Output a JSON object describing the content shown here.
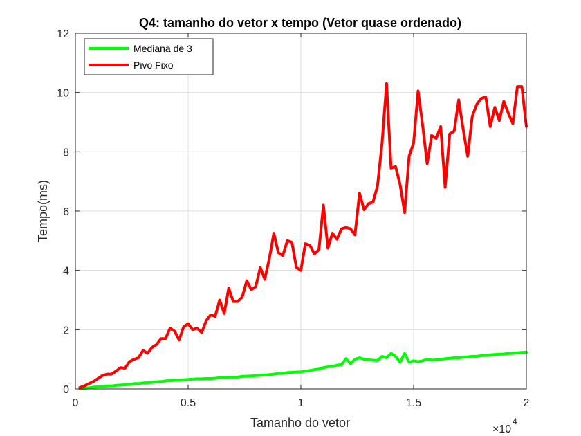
{
  "chart_data": {
    "type": "line",
    "title": "Q4: tamanho do vetor x tempo (Vetor quase ordenado)",
    "xlabel": "Tamanho do vetor",
    "ylabel": "Tempo(ms)",
    "x_exponent_times": "×10",
    "x_exponent_power": "4",
    "xlim": [
      0,
      20000
    ],
    "ylim": [
      0,
      12
    ],
    "x_ticks": [
      0,
      5000,
      10000,
      15000,
      20000
    ],
    "x_tick_labels": [
      "0",
      "0.5",
      "1",
      "1.5",
      "2"
    ],
    "y_ticks": [
      0,
      2,
      4,
      6,
      8,
      10,
      12
    ],
    "y_tick_labels": [
      "0",
      "2",
      "4",
      "6",
      "8",
      "10",
      "12"
    ],
    "grid": true,
    "legend_position": "top-left",
    "series": [
      {
        "name": "Mediana de 3",
        "color": "#00ff00",
        "x": [
          200,
          400,
          600,
          800,
          1000,
          1200,
          1400,
          1600,
          1800,
          2000,
          2200,
          2400,
          2600,
          2800,
          3000,
          3200,
          3400,
          3600,
          3800,
          4000,
          4200,
          4400,
          4600,
          4800,
          5000,
          5200,
          5400,
          5600,
          5800,
          6000,
          6200,
          6400,
          6600,
          6800,
          7000,
          7200,
          7400,
          7600,
          7800,
          8000,
          8200,
          8400,
          8600,
          8800,
          9000,
          9200,
          9400,
          9600,
          9800,
          10000,
          10200,
          10400,
          10600,
          10800,
          11000,
          11200,
          11400,
          11600,
          11800,
          12000,
          12200,
          12400,
          12600,
          12800,
          13000,
          13200,
          13400,
          13600,
          13800,
          14000,
          14200,
          14400,
          14600,
          14800,
          15000,
          15200,
          15400,
          15600,
          15800,
          16000,
          16200,
          16400,
          16600,
          16800,
          17000,
          17200,
          17400,
          17600,
          17800,
          18000,
          18200,
          18400,
          18600,
          18800,
          19000,
          19200,
          19400,
          19600,
          19800,
          20000
        ],
        "values": [
          0.0,
          0.02,
          0.04,
          0.06,
          0.07,
          0.08,
          0.1,
          0.1,
          0.12,
          0.13,
          0.14,
          0.15,
          0.18,
          0.18,
          0.2,
          0.21,
          0.22,
          0.24,
          0.25,
          0.27,
          0.28,
          0.29,
          0.3,
          0.31,
          0.32,
          0.33,
          0.34,
          0.34,
          0.35,
          0.35,
          0.36,
          0.38,
          0.38,
          0.4,
          0.4,
          0.4,
          0.42,
          0.43,
          0.44,
          0.45,
          0.46,
          0.47,
          0.48,
          0.5,
          0.52,
          0.53,
          0.55,
          0.56,
          0.57,
          0.58,
          0.6,
          0.62,
          0.65,
          0.67,
          0.72,
          0.75,
          0.76,
          0.8,
          0.82,
          1.02,
          0.85,
          1.0,
          1.05,
          1.0,
          0.98,
          0.97,
          0.96,
          1.1,
          1.05,
          1.2,
          1.1,
          0.9,
          1.2,
          0.9,
          0.95,
          0.92,
          0.95,
          1.0,
          0.97,
          0.98,
          1.0,
          1.02,
          1.03,
          1.05,
          1.05,
          1.07,
          1.08,
          1.1,
          1.1,
          1.12,
          1.13,
          1.15,
          1.16,
          1.17,
          1.18,
          1.2,
          1.2,
          1.22,
          1.23,
          1.24
        ]
      },
      {
        "name": "Pivo Fixo",
        "color": "#ff0000",
        "x": [
          200,
          400,
          600,
          800,
          1000,
          1200,
          1400,
          1600,
          1800,
          2000,
          2200,
          2400,
          2600,
          2800,
          3000,
          3200,
          3400,
          3600,
          3800,
          4000,
          4200,
          4400,
          4600,
          4800,
          5000,
          5200,
          5400,
          5600,
          5800,
          6000,
          6200,
          6400,
          6600,
          6800,
          7000,
          7200,
          7400,
          7600,
          7800,
          8000,
          8200,
          8400,
          8600,
          8800,
          9000,
          9200,
          9400,
          9600,
          9800,
          10000,
          10200,
          10400,
          10600,
          10800,
          11000,
          11200,
          11400,
          11600,
          11800,
          12000,
          12200,
          12400,
          12600,
          12800,
          13000,
          13200,
          13400,
          13600,
          13800,
          14000,
          14200,
          14400,
          14600,
          14800,
          15000,
          15200,
          15400,
          15600,
          15800,
          16000,
          16200,
          16400,
          16600,
          16800,
          17000,
          17200,
          17400,
          17600,
          17800,
          18000,
          18200,
          18400,
          18600,
          18800,
          19000,
          19200,
          19400,
          19600,
          19800,
          20000
        ],
        "values": [
          0.05,
          0.1,
          0.18,
          0.25,
          0.35,
          0.45,
          0.5,
          0.5,
          0.6,
          0.72,
          0.7,
          0.92,
          1.0,
          1.05,
          1.3,
          1.2,
          1.4,
          1.5,
          1.7,
          1.7,
          2.05,
          1.95,
          1.65,
          2.1,
          2.2,
          2.0,
          2.05,
          1.9,
          2.3,
          2.5,
          2.45,
          3.0,
          2.55,
          3.4,
          2.95,
          2.95,
          3.1,
          3.65,
          3.35,
          3.45,
          4.1,
          3.7,
          4.4,
          5.25,
          4.6,
          4.5,
          5.0,
          4.95,
          4.1,
          4.0,
          4.9,
          4.85,
          4.55,
          4.7,
          6.2,
          4.75,
          5.25,
          5.05,
          5.4,
          5.45,
          5.4,
          5.2,
          6.6,
          6.05,
          6.25,
          6.3,
          6.85,
          8.3,
          10.3,
          7.45,
          7.5,
          6.9,
          5.95,
          7.85,
          8.3,
          10.05,
          8.9,
          7.6,
          8.55,
          8.45,
          8.85,
          6.8,
          8.6,
          8.7,
          9.75,
          8.75,
          7.85,
          9.2,
          9.6,
          9.8,
          9.85,
          8.85,
          9.5,
          9.05,
          9.7,
          9.3,
          8.95,
          10.2,
          10.2,
          8.85
        ]
      }
    ]
  }
}
